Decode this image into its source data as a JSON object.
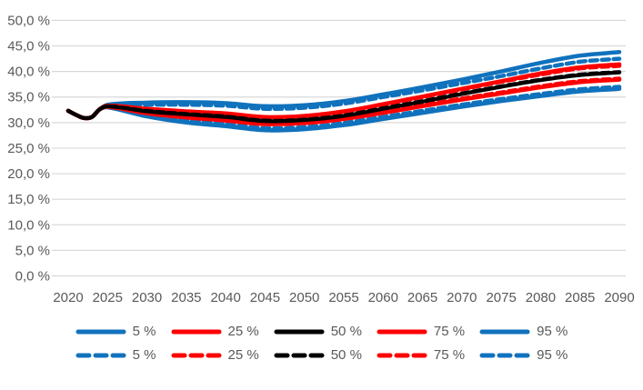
{
  "page": {
    "background": "#ffffff"
  },
  "colors": {
    "blue": "#1072BD",
    "red": "#FF0000",
    "black": "#000000",
    "gridline": "#D9D9D9",
    "axis_text": "#595959"
  },
  "chart_data": {
    "type": "line",
    "title": "",
    "xlabel": "",
    "ylabel": "",
    "xlim": [
      2020,
      2090
    ],
    "ylim": [
      0,
      50
    ],
    "grid": "horizontal",
    "legend_position": "bottom",
    "y_ticks": [
      0,
      5,
      10,
      15,
      20,
      25,
      30,
      35,
      40,
      45,
      50
    ],
    "y_tick_labels": [
      "0,0 %",
      "5,0 %",
      "10,0 %",
      "15,0 %",
      "20,0 %",
      "25,0 %",
      "30,0 %",
      "35,0 %",
      "40,0 %",
      "45,0 %",
      "50,0 %"
    ],
    "x_ticks": [
      2020,
      2025,
      2030,
      2035,
      2040,
      2045,
      2050,
      2055,
      2060,
      2065,
      2070,
      2075,
      2080,
      2085,
      2090
    ],
    "x_tick_labels": [
      "2020",
      "2025",
      "2030",
      "2035",
      "2040",
      "2045",
      "2050",
      "2055",
      "2060",
      "2065",
      "2070",
      "2075",
      "2080",
      "2085",
      "2090"
    ],
    "x_knots": [
      2020,
      2021,
      2022,
      2023,
      2024,
      2025,
      2030,
      2035,
      2040,
      2045,
      2050,
      2055,
      2060,
      2065,
      2070,
      2075,
      2080,
      2085,
      2090
    ],
    "series": [
      {
        "name": "95 %",
        "style": "solid",
        "color": "#1072BD",
        "width": 4.5,
        "values": [
          32.3,
          31.5,
          30.9,
          31.1,
          32.6,
          33.5,
          33.9,
          34.0,
          33.8,
          33.2,
          33.4,
          34.2,
          35.5,
          36.9,
          38.4,
          40.0,
          41.7,
          43.1,
          43.8
        ]
      },
      {
        "name": "5 %",
        "style": "solid",
        "color": "#1072BD",
        "width": 4.5,
        "values": [
          32.3,
          31.5,
          30.9,
          31.1,
          32.6,
          33.0,
          31.2,
          30.0,
          29.3,
          28.5,
          28.7,
          29.5,
          30.7,
          31.9,
          33.1,
          34.2,
          35.2,
          36.1,
          36.6
        ]
      },
      {
        "name": "95 %",
        "style": "dashed",
        "color": "#1072BD",
        "width": 4.5,
        "values": [
          32.3,
          31.5,
          30.9,
          31.1,
          32.6,
          33.4,
          33.5,
          33.5,
          33.3,
          32.7,
          32.9,
          33.7,
          35.0,
          36.3,
          37.7,
          39.1,
          40.6,
          41.9,
          42.5
        ]
      },
      {
        "name": "5 %",
        "style": "dashed",
        "color": "#1072BD",
        "width": 4.5,
        "values": [
          32.3,
          31.5,
          30.9,
          31.1,
          32.6,
          33.0,
          31.4,
          30.4,
          29.7,
          28.9,
          29.1,
          29.9,
          31.1,
          32.3,
          33.5,
          34.6,
          35.6,
          36.5,
          37.0
        ]
      },
      {
        "name": "75 %",
        "style": "solid",
        "color": "#FF0000",
        "width": 4.5,
        "values": [
          32.3,
          31.5,
          30.9,
          31.1,
          32.6,
          33.3,
          32.7,
          32.2,
          31.8,
          31.1,
          31.3,
          32.2,
          33.6,
          35.1,
          36.6,
          38.1,
          39.6,
          40.8,
          41.4
        ]
      },
      {
        "name": "25 %",
        "style": "solid",
        "color": "#FF0000",
        "width": 4.5,
        "values": [
          32.3,
          31.5,
          30.9,
          31.1,
          32.6,
          33.1,
          31.8,
          31.0,
          30.4,
          29.7,
          29.9,
          30.7,
          31.9,
          33.2,
          34.5,
          35.7,
          36.9,
          37.9,
          38.4
        ]
      },
      {
        "name": "75 %",
        "style": "dashed",
        "color": "#FF0000",
        "width": 4.5,
        "values": [
          32.3,
          31.5,
          30.9,
          31.1,
          32.6,
          33.3,
          32.6,
          32.1,
          31.7,
          31.0,
          31.2,
          32.1,
          33.5,
          35.0,
          36.5,
          38.0,
          39.4,
          40.6,
          41.1
        ]
      },
      {
        "name": "25 %",
        "style": "dashed",
        "color": "#FF0000",
        "width": 4.5,
        "values": [
          32.3,
          31.5,
          30.9,
          31.1,
          32.6,
          33.1,
          31.9,
          31.2,
          30.6,
          29.9,
          30.1,
          30.9,
          32.1,
          33.4,
          34.7,
          35.9,
          37.1,
          38.1,
          38.6
        ]
      },
      {
        "name": "50 %",
        "style": "solid",
        "color": "#000000",
        "width": 4.2,
        "values": [
          32.3,
          31.5,
          30.9,
          31.1,
          32.6,
          33.2,
          32.2,
          31.6,
          31.1,
          30.3,
          30.5,
          31.3,
          32.7,
          34.1,
          35.6,
          37.0,
          38.3,
          39.3,
          39.8
        ]
      },
      {
        "name": "50 %",
        "style": "dashed",
        "color": "#000000",
        "width": 4.2,
        "values": [
          32.3,
          31.5,
          30.9,
          31.1,
          32.6,
          33.2,
          32.3,
          31.7,
          31.2,
          30.4,
          30.6,
          31.4,
          32.8,
          34.2,
          35.7,
          37.1,
          38.4,
          39.4,
          39.9
        ]
      }
    ]
  },
  "legend": {
    "rows": [
      {
        "style": "solid",
        "items": [
          {
            "label": "5 %",
            "color": "#1072BD"
          },
          {
            "label": "25 %",
            "color": "#FF0000"
          },
          {
            "label": "50 %",
            "color": "#000000"
          },
          {
            "label": "75 %",
            "color": "#FF0000"
          },
          {
            "label": "95 %",
            "color": "#1072BD"
          }
        ]
      },
      {
        "style": "dashed",
        "items": [
          {
            "label": "5 %",
            "color": "#1072BD"
          },
          {
            "label": "25 %",
            "color": "#FF0000"
          },
          {
            "label": "50 %",
            "color": "#000000"
          },
          {
            "label": "75 %",
            "color": "#FF0000"
          },
          {
            "label": "95 %",
            "color": "#1072BD"
          }
        ]
      }
    ]
  }
}
